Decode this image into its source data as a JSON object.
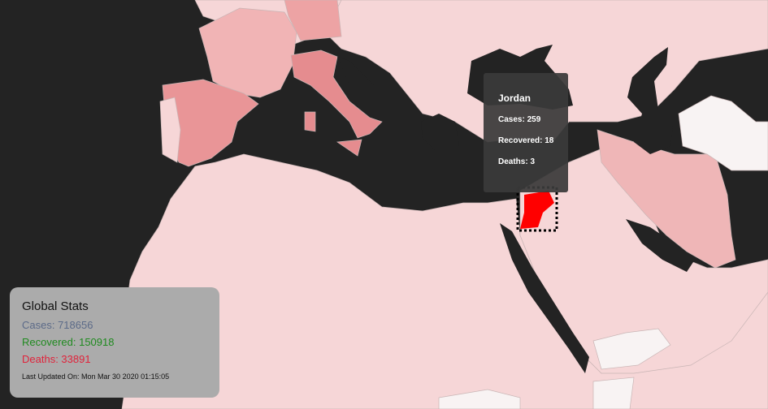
{
  "tooltip": {
    "country": "Jordan",
    "cases": "Cases: 259",
    "recovered": "Recovered: 18",
    "deaths": "Deaths: 3"
  },
  "global_stats": {
    "title": "Global Stats",
    "cases": "Cases: 718656",
    "recovered": "Recovered: 150918",
    "deaths": "Deaths: 33891",
    "last_updated": "Last Updated On: Mon Mar 30 2020 01:15:05"
  },
  "colors": {
    "background": "#232323",
    "land_base": "#f6d6d7",
    "highlight": "#ff0000",
    "cases_text": "#5b6a88",
    "recovered_text": "#1f8a1f",
    "deaths_text": "#e0233b"
  },
  "map_regions": [
    {
      "name": "France",
      "fill": "#f1b4b5"
    },
    {
      "name": "Germany",
      "fill": "#eda3a4"
    },
    {
      "name": "Italy",
      "fill": "#e58c8f"
    },
    {
      "name": "Spain",
      "fill": "#e99597"
    },
    {
      "name": "Portugal",
      "fill": "#f6d6d7"
    },
    {
      "name": "Iran",
      "fill": "#efb6b7"
    },
    {
      "name": "Jordan",
      "fill": "#ff0000"
    },
    {
      "name": "Kazakhstan",
      "fill": "#f8f3f3"
    },
    {
      "name": "Yemen",
      "fill": "#f8f3f3"
    }
  ]
}
